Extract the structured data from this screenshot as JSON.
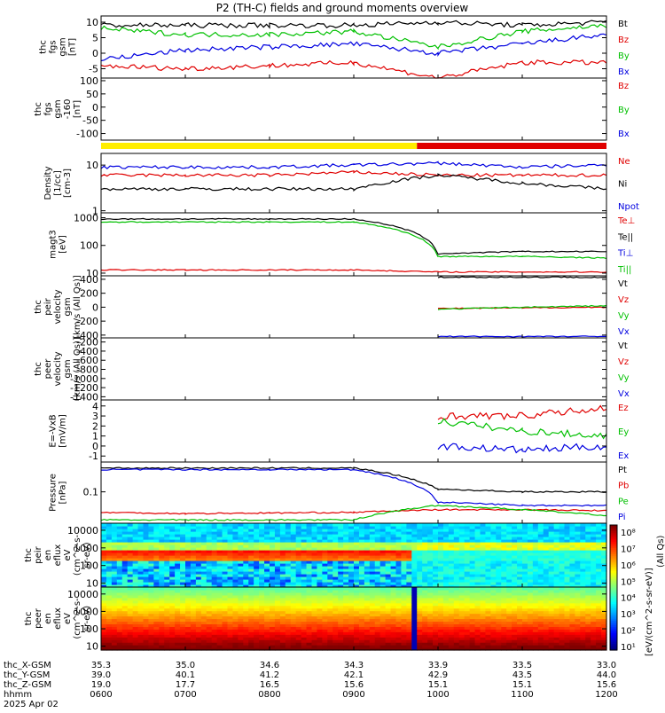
{
  "title": "P2 (TH-C) fields and ground moments overview",
  "panels": [
    {
      "id": "fgs",
      "ylabel": [
        "thc",
        "fgs",
        "gsm",
        "[nT]"
      ],
      "ticks": [
        "10",
        "5",
        "0",
        "-5"
      ],
      "legend": [
        {
          "t": "Bt",
          "c": "#000000"
        },
        {
          "t": "Bz",
          "c": "#e00000"
        },
        {
          "t": "By",
          "c": "#00c000"
        },
        {
          "t": "Bx",
          "c": "#0000e0"
        }
      ]
    },
    {
      "id": "fgs-ltb",
      "ylabel": [
        "thc",
        "fgs",
        "gsm",
        "-160",
        "[nT]"
      ],
      "ticks": [
        "100",
        "50",
        "0",
        "-50",
        "-100"
      ],
      "legend": [
        {
          "t": "Bz",
          "c": "#e00000"
        },
        {
          "t": "By",
          "c": "#00c000"
        },
        {
          "t": "Bx",
          "c": "#0000e0"
        }
      ]
    },
    {
      "id": "density",
      "ylabel": [
        "Density",
        "[1/cc]",
        "[cm-3]"
      ],
      "ticks": [
        "10",
        "1"
      ],
      "legend": [
        {
          "t": "Ne",
          "c": "#e00000"
        },
        {
          "t": "Ni",
          "c": "#000000"
        },
        {
          "t": "Npot",
          "c": "#0000e0"
        }
      ]
    },
    {
      "id": "temp",
      "ylabel": [
        "magt3",
        "[eV]"
      ],
      "ticks": [
        "1000",
        "100",
        "10"
      ],
      "legend": [
        {
          "t": "Te⊥",
          "c": "#e00000"
        },
        {
          "t": "Te||",
          "c": "#000000"
        },
        {
          "t": "Ti⊥",
          "c": "#0000e0"
        },
        {
          "t": "Ti||",
          "c": "#00c000"
        }
      ]
    },
    {
      "id": "ivel",
      "ylabel": [
        "thc",
        "peir",
        "velocity",
        "gsm",
        "[km/s (All Qs)]"
      ],
      "ticks": [
        "400",
        "200",
        "0",
        "-200",
        "-400"
      ],
      "legend": [
        {
          "t": "Vt",
          "c": "#000000"
        },
        {
          "t": "Vz",
          "c": "#e00000"
        },
        {
          "t": "Vy",
          "c": "#00c000"
        },
        {
          "t": "Vx",
          "c": "#0000e0"
        }
      ]
    },
    {
      "id": "evel",
      "ylabel": [
        "thc",
        "peer",
        "velocity",
        "gsm",
        "[km/s (All Qs)]"
      ],
      "ticks": [
        "-200",
        "-400",
        "-600",
        "-800",
        "-1000",
        "-1200",
        "-1400"
      ],
      "legend": [
        {
          "t": "Vt",
          "c": "#000000"
        },
        {
          "t": "Vz",
          "c": "#e00000"
        },
        {
          "t": "Vy",
          "c": "#00c000"
        },
        {
          "t": "Vx",
          "c": "#0000e0"
        }
      ]
    },
    {
      "id": "efield",
      "ylabel": [
        "E=-VxB",
        "[mV/m]"
      ],
      "ticks": [
        "4",
        "3",
        "2",
        "1",
        "0",
        "-1"
      ],
      "legend": [
        {
          "t": "Ez",
          "c": "#e00000"
        },
        {
          "t": "Ey",
          "c": "#00c000"
        },
        {
          "t": "Ex",
          "c": "#0000e0"
        }
      ]
    },
    {
      "id": "pressure",
      "ylabel": [
        "Pressure",
        "[nPa]"
      ],
      "ticks": [
        "0.1"
      ],
      "legend": [
        {
          "t": "Pt",
          "c": "#000000"
        },
        {
          "t": "Pb",
          "c": "#e00000"
        },
        {
          "t": "Pe",
          "c": "#00c000"
        },
        {
          "t": "Pi",
          "c": "#0000e0"
        }
      ]
    },
    {
      "id": "ispec",
      "ylabel": [
        "thc",
        "peir",
        "en",
        "eflux",
        "eV",
        "(cm^2-s-",
        "sr-eV)"
      ],
      "ticks": [
        "10000",
        "1000",
        "100",
        "10"
      ],
      "legend": []
    },
    {
      "id": "espec",
      "ylabel": [
        "thc",
        "peer",
        "en",
        "eflux",
        "eV",
        "(cm^2-s-",
        "sr-eV)"
      ],
      "ticks": [
        "10000",
        "1000",
        "100",
        "10"
      ],
      "legend": []
    }
  ],
  "colorbar": {
    "ticks": [
      "10⁸",
      "10⁷",
      "10⁶",
      "10⁵",
      "10⁴",
      "10³",
      "10²",
      "10¹"
    ],
    "label1": "[eV/(cm^2-s-sr-eV)]",
    "label2": "(All Qs)"
  },
  "xaxis": {
    "rows": [
      {
        "label": "thc_X-GSM",
        "values": [
          "35.3",
          "35.0",
          "34.6",
          "34.3",
          "33.9",
          "33.5",
          "33.0"
        ]
      },
      {
        "label": "thc_Y-GSM",
        "values": [
          "39.0",
          "40.1",
          "41.2",
          "42.1",
          "42.9",
          "43.5",
          "44.0"
        ]
      },
      {
        "label": "thc_Z-GSM",
        "values": [
          "19.0",
          "17.7",
          "16.5",
          "15.6",
          "15.1",
          "15.1",
          "15.6"
        ]
      },
      {
        "label": "hhmm",
        "values": [
          "0600",
          "0700",
          "0800",
          "0900",
          "1000",
          "1100",
          "1200"
        ]
      }
    ],
    "date": "2025 Apr 02"
  },
  "chart_data": {
    "type": "line",
    "title": "P2 (TH-C) fields and ground moments overview",
    "x": [
      "0600",
      "0700",
      "0800",
      "0900",
      "1000",
      "1100",
      "1200"
    ],
    "mode_bar": [
      {
        "from": "0600",
        "to": "0945",
        "color": "#ffee00"
      },
      {
        "from": "0945",
        "to": "1200",
        "color": "#e00000"
      }
    ],
    "series": [
      {
        "panel": "fgs",
        "name": "Bt",
        "values": [
          9,
          9,
          9,
          9,
          10,
          9,
          10
        ]
      },
      {
        "panel": "fgs",
        "name": "Bz",
        "values": [
          -4,
          -5,
          -4,
          -3,
          -8,
          -3,
          -3
        ]
      },
      {
        "panel": "fgs",
        "name": "By",
        "values": [
          8,
          6,
          6,
          7,
          2,
          7,
          9
        ]
      },
      {
        "panel": "fgs",
        "name": "Bx",
        "values": [
          -2,
          1,
          2,
          3,
          0,
          3,
          6
        ]
      },
      {
        "panel": "density",
        "name": "Ne",
        "values": [
          6,
          6,
          6,
          7,
          6,
          6,
          6
        ]
      },
      {
        "panel": "density",
        "name": "Ni",
        "values": [
          3,
          3,
          3,
          3,
          6,
          4,
          3
        ]
      },
      {
        "panel": "density",
        "name": "Npot",
        "values": [
          9,
          9,
          9,
          10,
          11,
          9,
          10
        ]
      },
      {
        "panel": "temp",
        "name": "Te||",
        "values": [
          900,
          900,
          900,
          900,
          50,
          60,
          60
        ]
      },
      {
        "panel": "temp",
        "name": "Ti||",
        "values": [
          700,
          700,
          700,
          700,
          40,
          40,
          35
        ]
      },
      {
        "panel": "temp",
        "name": "Te⊥",
        "values": [
          13,
          13,
          13,
          13,
          11,
          11,
          11
        ]
      },
      {
        "panel": "ivel",
        "name": "Vt",
        "values": [
          null,
          null,
          null,
          null,
          430,
          430,
          430
        ]
      },
      {
        "panel": "ivel",
        "name": "Vz",
        "values": [
          null,
          null,
          null,
          null,
          -20,
          -10,
          0
        ]
      },
      {
        "panel": "ivel",
        "name": "Vy",
        "values": [
          null,
          null,
          null,
          null,
          -30,
          0,
          20
        ]
      },
      {
        "panel": "ivel",
        "name": "Vx",
        "values": [
          null,
          null,
          null,
          null,
          -420,
          -420,
          -420
        ]
      },
      {
        "panel": "efield",
        "name": "Ez",
        "values": [
          null,
          null,
          null,
          null,
          3,
          3,
          3.8
        ]
      },
      {
        "panel": "efield",
        "name": "Ey",
        "values": [
          null,
          null,
          null,
          null,
          2.5,
          1.5,
          1
        ]
      },
      {
        "panel": "efield",
        "name": "Ex",
        "values": [
          null,
          null,
          null,
          null,
          0,
          -0.4,
          0
        ]
      },
      {
        "panel": "pressure",
        "name": "Pt",
        "values": [
          0.5,
          0.5,
          0.5,
          0.5,
          0.12,
          0.1,
          0.1
        ]
      },
      {
        "panel": "pressure",
        "name": "Pi",
        "values": [
          0.45,
          0.45,
          0.45,
          0.45,
          0.05,
          0.04,
          0.04
        ]
      },
      {
        "panel": "pressure",
        "name": "Pb",
        "values": [
          0.025,
          0.023,
          0.024,
          0.025,
          0.03,
          0.03,
          0.028
        ]
      },
      {
        "panel": "pressure",
        "name": "Pe",
        "values": [
          0.015,
          0.015,
          0.015,
          0.015,
          0.04,
          0.03,
          0.02
        ]
      }
    ]
  }
}
